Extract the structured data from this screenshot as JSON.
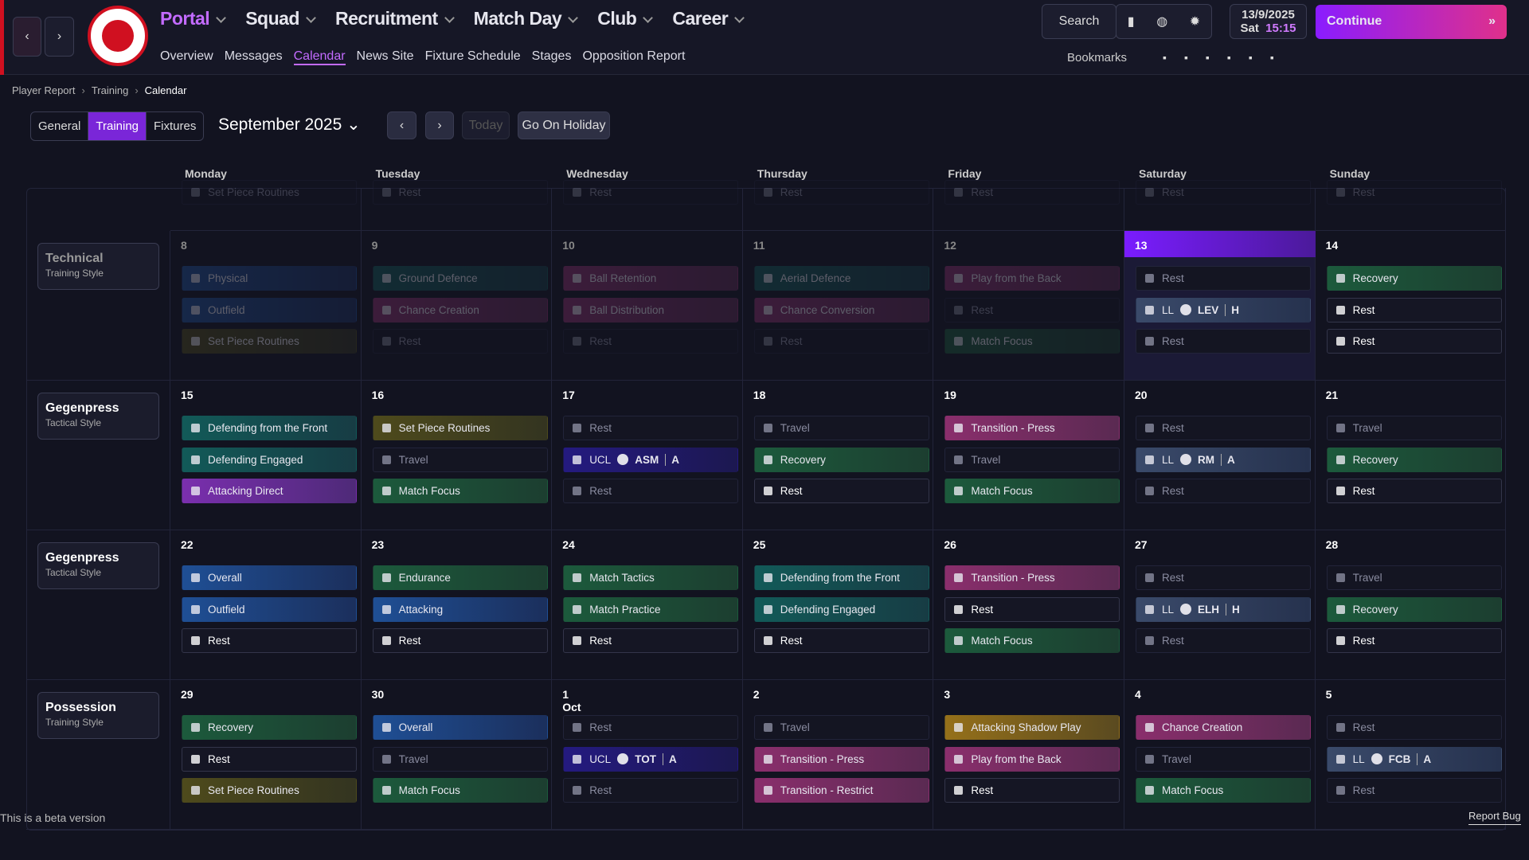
{
  "nav": {
    "main_tabs": [
      "Portal",
      "Squad",
      "Recruitment",
      "Match Day",
      "Club",
      "Career"
    ],
    "active_main": 0,
    "sub_tabs": [
      "Overview",
      "Messages",
      "Calendar",
      "News Site",
      "Fixture Schedule",
      "Stages",
      "Opposition Report"
    ],
    "active_sub": 2,
    "search": "Search",
    "date": "13/9/2025",
    "weekday": "Sat",
    "time": "15:15",
    "continue": "Continue",
    "bookmarks": "Bookmarks"
  },
  "breadcrumb": [
    "Player Report",
    "Training",
    "Calendar"
  ],
  "view_tabs": [
    "General",
    "Training",
    "Fixtures"
  ],
  "active_view": 1,
  "month": "September 2025",
  "today_button": "Today",
  "holiday_button": "Go On Holiday",
  "day_names": [
    "Monday",
    "Tuesday",
    "Wednesday",
    "Thursday",
    "Friday",
    "Saturday",
    "Sunday"
  ],
  "previous_row": [
    "Set Piece Routines",
    "Rest",
    "Rest",
    "Rest",
    "Rest",
    "Rest",
    "Rest"
  ],
  "weeks": [
    {
      "style": "Technical",
      "style_type": "Training Style",
      "past_days": 5,
      "today": 5,
      "days": [
        {
          "date": "8",
          "sessions": [
            {
              "text": "Physical",
              "color": "blue"
            },
            {
              "text": "Outfield",
              "color": "blue"
            },
            {
              "text": "Set Piece Routines",
              "color": "olive"
            }
          ]
        },
        {
          "date": "9",
          "sessions": [
            {
              "text": "Ground Defence",
              "color": "teal"
            },
            {
              "text": "Chance Creation",
              "color": "pink"
            },
            {
              "text": "Rest",
              "color": "dim"
            }
          ]
        },
        {
          "date": "10",
          "sessions": [
            {
              "text": "Ball Retention",
              "color": "pink"
            },
            {
              "text": "Ball Distribution",
              "color": "pink"
            },
            {
              "text": "Rest",
              "color": "dim"
            }
          ]
        },
        {
          "date": "11",
          "sessions": [
            {
              "text": "Aerial Defence",
              "color": "teal"
            },
            {
              "text": "Chance Conversion",
              "color": "pink"
            },
            {
              "text": "Rest",
              "color": "dim"
            }
          ]
        },
        {
          "date": "12",
          "sessions": [
            {
              "text": "Play from the Back",
              "color": "pink"
            },
            {
              "text": "Rest",
              "color": "dim"
            },
            {
              "text": "Match Focus",
              "color": "green"
            }
          ]
        },
        {
          "date": "13",
          "sessions": [
            {
              "text": "Rest",
              "color": "dim"
            },
            {
              "comp": "LL",
              "opp": "LEV",
              "venue": "H",
              "color": "match"
            },
            {
              "text": "Rest",
              "color": "dim"
            }
          ]
        },
        {
          "date": "14",
          "sessions": [
            {
              "text": "Recovery",
              "color": "green"
            },
            {
              "text": "Rest",
              "color": "rest"
            },
            {
              "text": "Rest",
              "color": "rest"
            }
          ]
        }
      ]
    },
    {
      "style": "Gegenpress",
      "style_type": "Tactical Style",
      "past_days": 0,
      "days": [
        {
          "date": "15",
          "sessions": [
            {
              "text": "Defending from the Front",
              "color": "teal"
            },
            {
              "text": "Defending Engaged",
              "color": "teal"
            },
            {
              "text": "Attacking Direct",
              "color": "purple"
            }
          ]
        },
        {
          "date": "16",
          "sessions": [
            {
              "text": "Set Piece Routines",
              "color": "olive"
            },
            {
              "text": "Travel",
              "color": "dim"
            },
            {
              "text": "Match Focus",
              "color": "green"
            }
          ]
        },
        {
          "date": "17",
          "sessions": [
            {
              "text": "Rest",
              "color": "dim"
            },
            {
              "comp": "UCL",
              "opp": "ASM",
              "venue": "A",
              "color": "ucl"
            },
            {
              "text": "Rest",
              "color": "dim"
            }
          ]
        },
        {
          "date": "18",
          "sessions": [
            {
              "text": "Travel",
              "color": "dim"
            },
            {
              "text": "Recovery",
              "color": "green"
            },
            {
              "text": "Rest",
              "color": "rest"
            }
          ]
        },
        {
          "date": "19",
          "sessions": [
            {
              "text": "Transition - Press",
              "color": "pink"
            },
            {
              "text": "Travel",
              "color": "dim"
            },
            {
              "text": "Match Focus",
              "color": "green"
            }
          ]
        },
        {
          "date": "20",
          "sessions": [
            {
              "text": "Rest",
              "color": "dim"
            },
            {
              "comp": "LL",
              "opp": "RM",
              "venue": "A",
              "color": "match"
            },
            {
              "text": "Rest",
              "color": "dim"
            }
          ]
        },
        {
          "date": "21",
          "sessions": [
            {
              "text": "Travel",
              "color": "dim"
            },
            {
              "text": "Recovery",
              "color": "green"
            },
            {
              "text": "Rest",
              "color": "rest"
            }
          ]
        }
      ]
    },
    {
      "style": "Gegenpress",
      "style_type": "Tactical Style",
      "past_days": 0,
      "days": [
        {
          "date": "22",
          "sessions": [
            {
              "text": "Overall",
              "color": "blue"
            },
            {
              "text": "Outfield",
              "color": "blue"
            },
            {
              "text": "Rest",
              "color": "rest"
            }
          ]
        },
        {
          "date": "23",
          "sessions": [
            {
              "text": "Endurance",
              "color": "green"
            },
            {
              "text": "Attacking",
              "color": "blue"
            },
            {
              "text": "Rest",
              "color": "rest"
            }
          ]
        },
        {
          "date": "24",
          "sessions": [
            {
              "text": "Match Tactics",
              "color": "green"
            },
            {
              "text": "Match Practice",
              "color": "green"
            },
            {
              "text": "Rest",
              "color": "rest"
            }
          ]
        },
        {
          "date": "25",
          "sessions": [
            {
              "text": "Defending from the Front",
              "color": "teal"
            },
            {
              "text": "Defending Engaged",
              "color": "teal"
            },
            {
              "text": "Rest",
              "color": "rest"
            }
          ]
        },
        {
          "date": "26",
          "sessions": [
            {
              "text": "Transition - Press",
              "color": "pink"
            },
            {
              "text": "Rest",
              "color": "rest"
            },
            {
              "text": "Match Focus",
              "color": "green"
            }
          ]
        },
        {
          "date": "27",
          "sessions": [
            {
              "text": "Rest",
              "color": "dim"
            },
            {
              "comp": "LL",
              "opp": "ELH",
              "venue": "H",
              "color": "match"
            },
            {
              "text": "Rest",
              "color": "dim"
            }
          ]
        },
        {
          "date": "28",
          "sessions": [
            {
              "text": "Travel",
              "color": "dim"
            },
            {
              "text": "Recovery",
              "color": "green"
            },
            {
              "text": "Rest",
              "color": "rest"
            }
          ]
        }
      ]
    },
    {
      "style": "Possession",
      "style_type": "Training Style",
      "past_days": 0,
      "days": [
        {
          "date": "29",
          "sessions": [
            {
              "text": "Recovery",
              "color": "green"
            },
            {
              "text": "Rest",
              "color": "rest"
            },
            {
              "text": "Set Piece Routines",
              "color": "olive"
            }
          ]
        },
        {
          "date": "30",
          "sessions": [
            {
              "text": "Overall",
              "color": "blue"
            },
            {
              "text": "Travel",
              "color": "dim"
            },
            {
              "text": "Match Focus",
              "color": "green"
            }
          ]
        },
        {
          "date": "1 Oct",
          "sessions": [
            {
              "text": "Rest",
              "color": "dim"
            },
            {
              "comp": "UCL",
              "opp": "TOT",
              "venue": "A",
              "color": "ucl"
            },
            {
              "text": "Rest",
              "color": "dim"
            }
          ]
        },
        {
          "date": "2",
          "sessions": [
            {
              "text": "Travel",
              "color": "dim"
            },
            {
              "text": "Transition - Press",
              "color": "pink"
            },
            {
              "text": "Transition - Restrict",
              "color": "pink"
            }
          ]
        },
        {
          "date": "3",
          "sessions": [
            {
              "text": "Attacking Shadow Play",
              "color": "gold"
            },
            {
              "text": "Play from the Back",
              "color": "pink"
            },
            {
              "text": "Rest",
              "color": "rest"
            }
          ]
        },
        {
          "date": "4",
          "sessions": [
            {
              "text": "Chance Creation",
              "color": "pink"
            },
            {
              "text": "Travel",
              "color": "dim"
            },
            {
              "text": "Match Focus",
              "color": "green"
            }
          ]
        },
        {
          "date": "5",
          "sessions": [
            {
              "text": "Rest",
              "color": "dim"
            },
            {
              "comp": "LL",
              "opp": "FCB",
              "venue": "A",
              "color": "match"
            },
            {
              "text": "Rest",
              "color": "dim"
            }
          ]
        }
      ]
    }
  ],
  "footer": {
    "beta": "This is a beta version",
    "report": "Report Bug"
  }
}
